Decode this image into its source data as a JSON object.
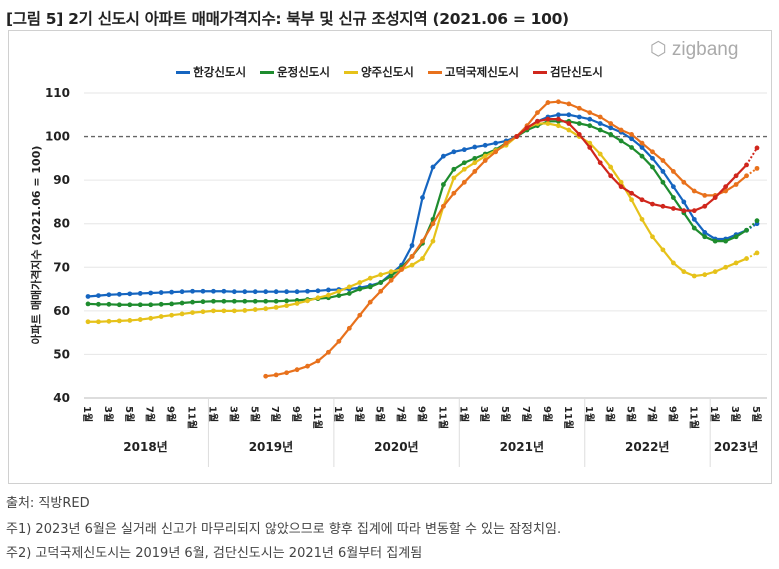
{
  "title": "[그림 5] 2기 신도시 아파트 매매가격지수: 북부 및 신규 조성지역 (2021.06 = 100)",
  "logo": "zigbang",
  "footnotes": {
    "source": "출처:  직방RED",
    "note1": "주1) 2023년 6월은 실거래 신고가 마무리되지 않았으므로 향후 집계에 따라 변동할 수 있는 잠정치임.",
    "note2": "주2) 고덕국제신도시는 2019년 6월, 검단신도시는 2021년 6월부터 집계됨"
  },
  "chart_data": {
    "type": "line",
    "ylabel": "아파트 매매가격지수 (2021.06 = 100)",
    "ylim": [
      40,
      110
    ],
    "yticks": [
      "40",
      "50",
      "60",
      "70",
      "80",
      "90",
      "100",
      "110"
    ],
    "reference_line": 100,
    "month_labels": [
      "1월",
      "3월",
      "5월",
      "7월",
      "9월",
      "11월"
    ],
    "years": [
      "2018년",
      "2019년",
      "2020년",
      "2021년",
      "2022년",
      "2023년"
    ],
    "x_start": "2018-01",
    "x_end": "2023-05",
    "series": [
      {
        "name": "한강신도시",
        "color": "#1565c0",
        "start": 0,
        "values": [
          63.3,
          63.5,
          63.7,
          63.8,
          63.9,
          64.0,
          64.1,
          64.2,
          64.3,
          64.4,
          64.5,
          64.5,
          64.5,
          64.5,
          64.4,
          64.4,
          64.4,
          64.4,
          64.4,
          64.4,
          64.4,
          64.5,
          64.6,
          64.8,
          64.9,
          65.0,
          65.3,
          65.8,
          66.5,
          68.5,
          70.5,
          75.0,
          86.0,
          93.0,
          95.5,
          96.5,
          97.0,
          97.6,
          98.0,
          98.5,
          99.0,
          100.0,
          102.0,
          103.5,
          104.5,
          105.0,
          105.0,
          104.5,
          104.0,
          103.0,
          102.0,
          101.0,
          99.5,
          97.5,
          95.0,
          92.0,
          88.5,
          85.0,
          81.0,
          78.0,
          76.5,
          76.5,
          77.5,
          78.5,
          80.0
        ]
      },
      {
        "name": "운정신도시",
        "color": "#1e8c2e",
        "start": 0,
        "values": [
          61.6,
          61.5,
          61.5,
          61.4,
          61.4,
          61.4,
          61.4,
          61.5,
          61.6,
          61.8,
          62.0,
          62.1,
          62.2,
          62.2,
          62.2,
          62.2,
          62.2,
          62.2,
          62.2,
          62.3,
          62.4,
          62.6,
          62.8,
          63.0,
          63.5,
          64.0,
          65.0,
          65.5,
          66.5,
          68.0,
          70.0,
          72.5,
          75.5,
          81.0,
          89.0,
          92.5,
          94.0,
          95.0,
          96.0,
          97.0,
          98.5,
          100.0,
          101.5,
          102.5,
          103.5,
          103.5,
          103.5,
          103.0,
          102.5,
          101.5,
          100.5,
          99.0,
          97.5,
          95.5,
          93.0,
          89.5,
          86.0,
          82.5,
          79.0,
          77.0,
          76.0,
          76.0,
          77.0,
          78.5,
          80.7
        ]
      },
      {
        "name": "양주신도시",
        "color": "#e6c21a",
        "start": 0,
        "values": [
          57.5,
          57.5,
          57.6,
          57.7,
          57.8,
          58.0,
          58.3,
          58.7,
          59.0,
          59.3,
          59.6,
          59.8,
          60.0,
          60.0,
          60.0,
          60.1,
          60.3,
          60.5,
          60.8,
          61.2,
          61.7,
          62.3,
          63.0,
          63.6,
          64.5,
          65.5,
          66.5,
          67.5,
          68.3,
          69.0,
          69.5,
          70.5,
          72.0,
          76.0,
          84.0,
          90.5,
          92.5,
          94.0,
          95.5,
          96.8,
          98.0,
          100.0,
          102.0,
          103.0,
          103.0,
          102.5,
          101.5,
          100.0,
          98.5,
          96.0,
          93.0,
          89.5,
          85.5,
          81.0,
          77.0,
          74.0,
          71.0,
          69.0,
          68.0,
          68.3,
          69.0,
          70.0,
          71.0,
          72.0,
          73.3
        ]
      },
      {
        "name": "고덕국제신도시",
        "color": "#e8711c",
        "start": 17,
        "values": [
          45.0,
          45.3,
          45.8,
          46.5,
          47.3,
          48.5,
          50.5,
          53.0,
          56.0,
          59.0,
          62.0,
          64.5,
          67.0,
          69.5,
          72.5,
          76.0,
          80.0,
          84.0,
          87.0,
          89.5,
          92.0,
          94.5,
          96.5,
          98.5,
          100.0,
          102.5,
          105.5,
          107.8,
          108.0,
          107.5,
          106.5,
          105.5,
          104.5,
          103.0,
          101.5,
          100.5,
          98.5,
          96.5,
          94.5,
          92.0,
          89.5,
          87.5,
          86.5,
          86.5,
          87.5,
          89.0,
          91.0,
          92.7
        ]
      },
      {
        "name": "검단신도시",
        "color": "#d0261c",
        "start": 41,
        "values": [
          100.0,
          102.0,
          103.5,
          104.0,
          104.0,
          103.0,
          100.5,
          97.5,
          94.0,
          91.0,
          88.5,
          87.0,
          85.5,
          84.5,
          84.0,
          83.5,
          83.0,
          83.0,
          84.0,
          86.0,
          88.5,
          91.0,
          93.5,
          97.4
        ]
      }
    ]
  }
}
